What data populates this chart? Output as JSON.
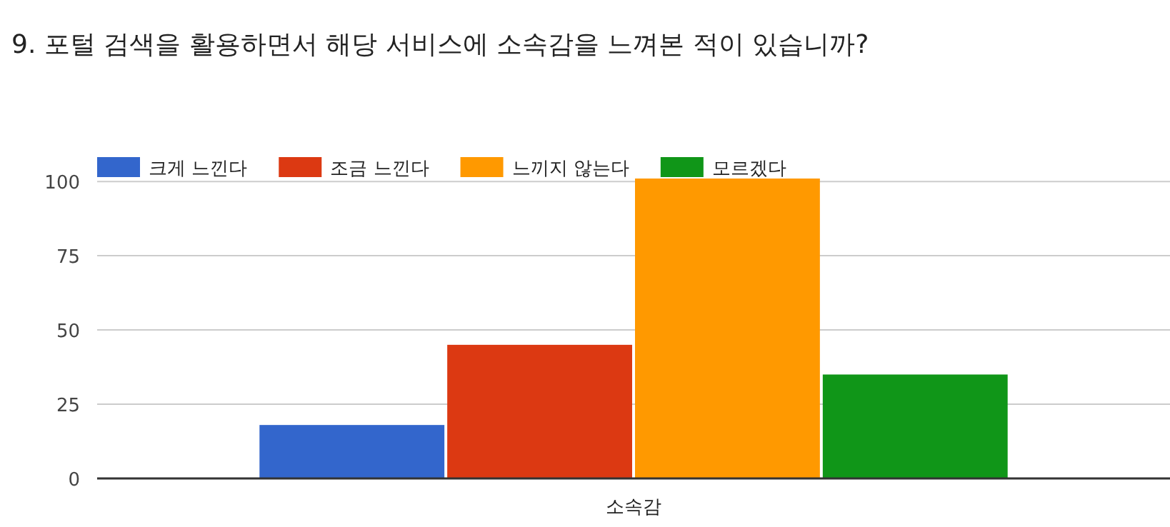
{
  "chart_data": {
    "type": "bar",
    "title": "9. 포털 검색을 활용하면서 해당 서비스에 소속감을 느껴본 적이 있습니까?",
    "categories": [
      "소속감"
    ],
    "series": [
      {
        "name": "크게 느낀다",
        "color": "#3366cc",
        "values": [
          18
        ]
      },
      {
        "name": "조금 느낀다",
        "color": "#dc3912",
        "values": [
          45
        ]
      },
      {
        "name": "느끼지 않는다",
        "color": "#ff9900",
        "values": [
          101
        ]
      },
      {
        "name": "모르겠다",
        "color": "#109618",
        "values": [
          35
        ]
      }
    ],
    "ylim": [
      0,
      101
    ],
    "yticks": [
      0,
      25,
      50,
      75,
      100
    ],
    "grid": "y",
    "legend": "top left"
  }
}
